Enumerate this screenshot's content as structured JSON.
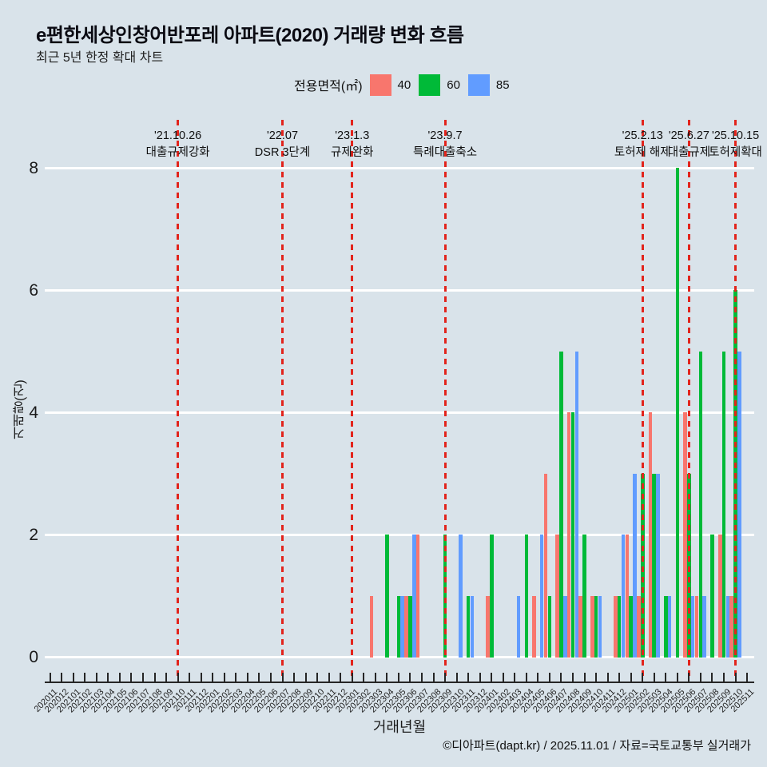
{
  "title": "e편한세상인창어반포레 아파트(2020) 거래량 변화 흐름",
  "subtitle": "최근 5년 한정 확대 차트",
  "legend": {
    "label": "전용면적(㎡)",
    "items": [
      {
        "label": "40",
        "color": "#F8766D"
      },
      {
        "label": "60",
        "color": "#00BA38"
      },
      {
        "label": "85",
        "color": "#619CFF"
      }
    ]
  },
  "colors": {
    "background": "#d9e3ea",
    "gridline": "#ffffff",
    "event_line": "#e2241c",
    "axis": "#262626"
  },
  "chart_data": {
    "type": "bar",
    "title": "e편한세상인창어반포레 아파트(2020) 거래량 변화 흐름",
    "xlabel": "거래년월",
    "ylabel": "거래량(건)",
    "yticks": [
      0,
      2,
      4,
      6,
      8
    ],
    "ylim": [
      0,
      8.4
    ],
    "grid": "horizontal",
    "legend_position": "top",
    "x": [
      "202011",
      "202012",
      "202101",
      "202102",
      "202103",
      "202104",
      "202105",
      "202106",
      "202107",
      "202108",
      "202109",
      "202110",
      "202111",
      "202112",
      "202201",
      "202202",
      "202203",
      "202204",
      "202205",
      "202206",
      "202207",
      "202208",
      "202209",
      "202210",
      "202211",
      "202212",
      "202301",
      "202302",
      "202303",
      "202304",
      "202305",
      "202306",
      "202307",
      "202308",
      "202309",
      "202310",
      "202311",
      "202312",
      "202401",
      "202402",
      "202403",
      "202404",
      "202405",
      "202406",
      "202407",
      "202408",
      "202409",
      "202410",
      "202411",
      "202412",
      "202501",
      "202502",
      "202503",
      "202504",
      "202505",
      "202506",
      "202507",
      "202508",
      "202509",
      "202510",
      "202511"
    ],
    "series": [
      {
        "name": "40",
        "color": "#F8766D",
        "values": [
          0,
          0,
          0,
          0,
          0,
          0,
          0,
          0,
          0,
          0,
          0,
          0,
          0,
          0,
          0,
          0,
          0,
          0,
          0,
          0,
          0,
          0,
          0,
          0,
          0,
          0,
          0,
          0,
          1,
          0,
          0,
          1,
          2,
          0,
          0,
          0,
          0,
          0,
          1,
          0,
          0,
          0,
          1,
          3,
          2,
          4,
          1,
          1,
          0,
          1,
          2,
          1,
          4,
          0,
          0,
          4,
          1,
          0,
          2,
          1,
          0
        ]
      },
      {
        "name": "60",
        "color": "#00BA38",
        "values": [
          0,
          0,
          0,
          0,
          0,
          0,
          0,
          0,
          0,
          0,
          0,
          0,
          0,
          0,
          0,
          0,
          0,
          0,
          0,
          0,
          0,
          0,
          0,
          0,
          0,
          0,
          0,
          0,
          0,
          2,
          1,
          1,
          0,
          0,
          2,
          0,
          1,
          0,
          2,
          0,
          0,
          2,
          0,
          1,
          5,
          4,
          2,
          1,
          0,
          1,
          1,
          3,
          3,
          1,
          8,
          3,
          5,
          2,
          5,
          6,
          0
        ]
      },
      {
        "name": "85",
        "color": "#619CFF",
        "values": [
          0,
          0,
          0,
          0,
          0,
          0,
          0,
          0,
          0,
          0,
          0,
          0,
          0,
          0,
          0,
          0,
          0,
          0,
          0,
          0,
          0,
          0,
          0,
          0,
          0,
          0,
          0,
          0,
          0,
          0,
          1,
          2,
          0,
          0,
          0,
          2,
          1,
          0,
          0,
          0,
          1,
          0,
          2,
          0,
          1,
          5,
          0,
          1,
          0,
          2,
          3,
          0,
          3,
          1,
          0,
          1,
          1,
          0,
          1,
          5,
          0
        ]
      }
    ],
    "annotations": [
      {
        "month": "202110",
        "date": "'21.10.26",
        "label": "대출규제강화"
      },
      {
        "month": "202207",
        "date": "'22.07",
        "label": "DSR 3단계"
      },
      {
        "month": "202301",
        "date": "'23.1.3",
        "label": "규제완화"
      },
      {
        "month": "202309",
        "date": "'23.9.7",
        "label": "특례대출축소"
      },
      {
        "month": "202502",
        "date": "'25.2.13",
        "label": "토허제 해제"
      },
      {
        "month": "202506",
        "date": "'25.6.27",
        "label": "대출규제"
      },
      {
        "month": "202510",
        "date": "'25.10.15",
        "label": "토허제확대"
      }
    ]
  },
  "footer": "©디아파트(dapt.kr) / 2025.11.01 / 자료=국토교통부 실거래가"
}
